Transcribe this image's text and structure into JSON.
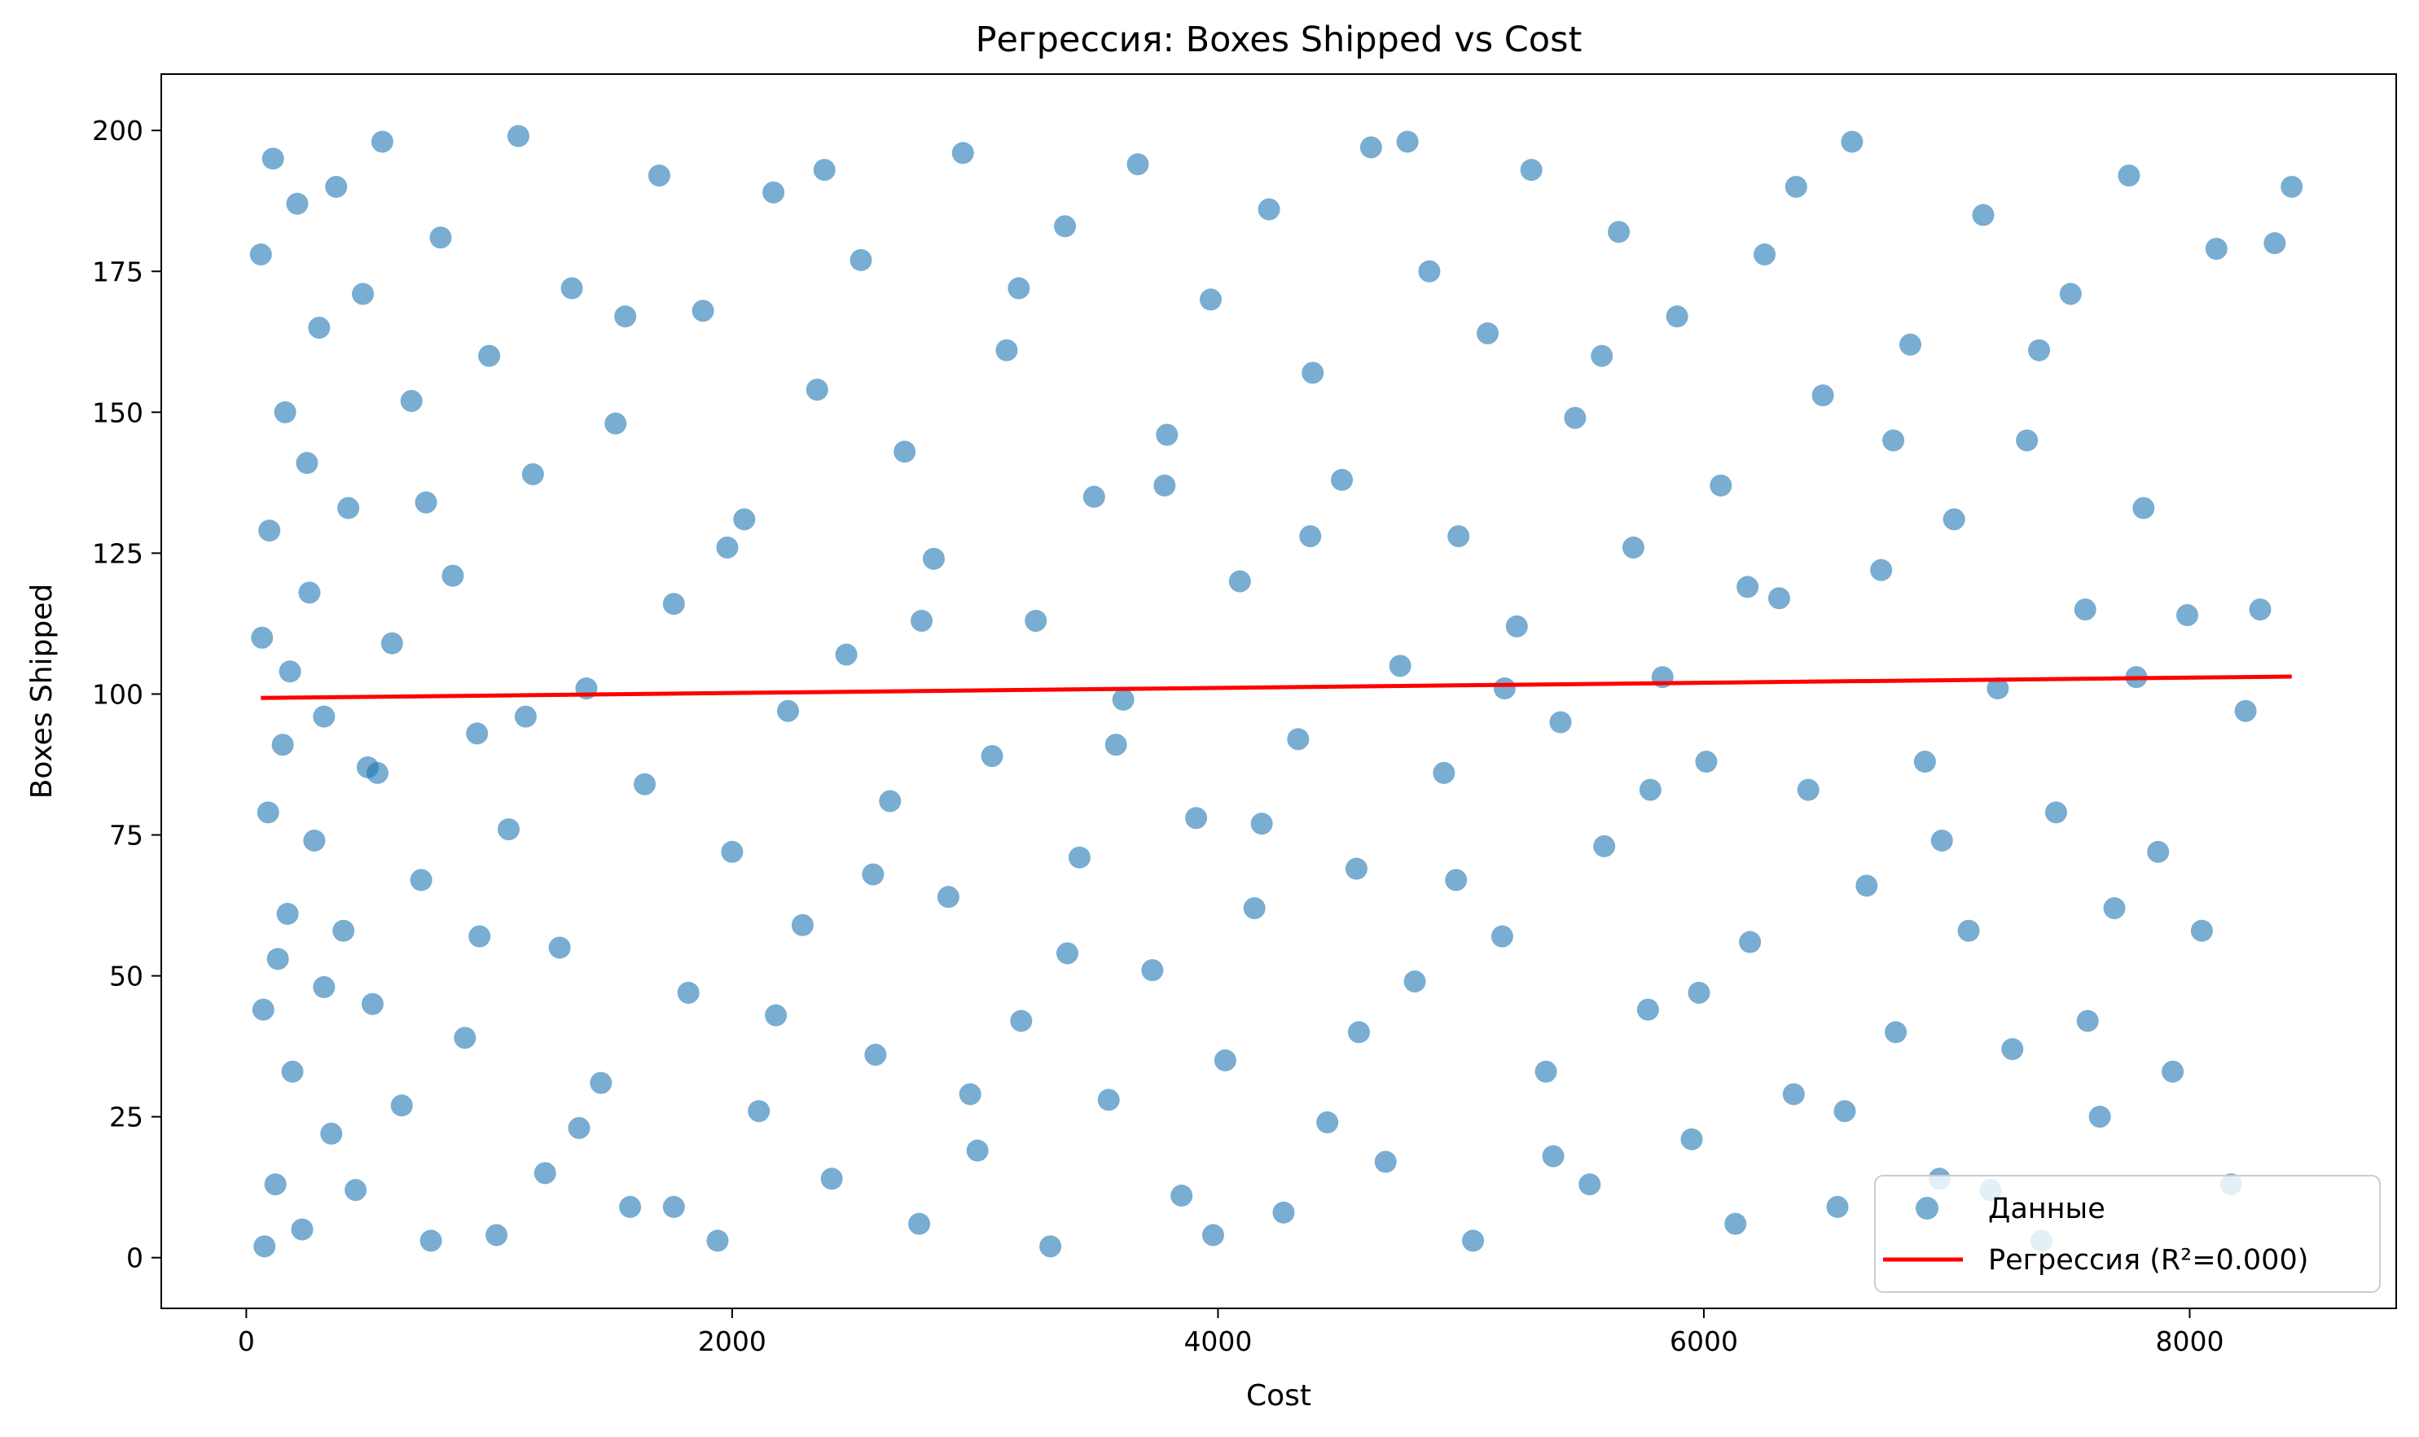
{
  "chart_data": {
    "type": "scatter",
    "title": "Регрессия: Boxes Shipped vs Cost",
    "xlabel": "Cost",
    "ylabel": "Boxes Shipped",
    "xlim": [
      -350,
      8850
    ],
    "ylim": [
      -9,
      210
    ],
    "x_ticks": [
      0,
      2000,
      4000,
      6000,
      8000
    ],
    "y_ticks": [
      0,
      25,
      50,
      75,
      100,
      125,
      150,
      175,
      200
    ],
    "grid": false,
    "legend_position": "bottom-right",
    "series": [
      {
        "name": "Данные",
        "kind": "scatter",
        "color": "#1f77b4",
        "alpha": 0.6,
        "points": [
          [
            60,
            178
          ],
          [
            65,
            110
          ],
          [
            70,
            44
          ],
          [
            75,
            2
          ],
          [
            90,
            79
          ],
          [
            95,
            129
          ],
          [
            110,
            195
          ],
          [
            120,
            13
          ],
          [
            130,
            53
          ],
          [
            150,
            91
          ],
          [
            160,
            150
          ],
          [
            170,
            61
          ],
          [
            180,
            104
          ],
          [
            190,
            33
          ],
          [
            210,
            187
          ],
          [
            230,
            5
          ],
          [
            250,
            141
          ],
          [
            260,
            118
          ],
          [
            280,
            74
          ],
          [
            300,
            165
          ],
          [
            320,
            96
          ],
          [
            350,
            22
          ],
          [
            370,
            190
          ],
          [
            400,
            58
          ],
          [
            420,
            133
          ],
          [
            450,
            12
          ],
          [
            480,
            171
          ],
          [
            500,
            87
          ],
          [
            520,
            45
          ],
          [
            560,
            198
          ],
          [
            600,
            109
          ],
          [
            640,
            27
          ],
          [
            680,
            152
          ],
          [
            720,
            67
          ],
          [
            760,
            3
          ],
          [
            800,
            181
          ],
          [
            850,
            121
          ],
          [
            900,
            39
          ],
          [
            950,
            93
          ],
          [
            1000,
            160
          ],
          [
            1030,
            4
          ],
          [
            1080,
            76
          ],
          [
            1120,
            199
          ],
          [
            1180,
            139
          ],
          [
            1230,
            15
          ],
          [
            1290,
            55
          ],
          [
            1340,
            172
          ],
          [
            1400,
            101
          ],
          [
            1460,
            31
          ],
          [
            1520,
            148
          ],
          [
            1580,
            9
          ],
          [
            1640,
            84
          ],
          [
            1700,
            192
          ],
          [
            1760,
            116
          ],
          [
            1820,
            47
          ],
          [
            1880,
            168
          ],
          [
            1940,
            3
          ],
          [
            2000,
            72
          ],
          [
            2050,
            131
          ],
          [
            2110,
            26
          ],
          [
            2170,
            189
          ],
          [
            2230,
            97
          ],
          [
            2290,
            59
          ],
          [
            2350,
            154
          ],
          [
            2410,
            14
          ],
          [
            2470,
            107
          ],
          [
            2530,
            177
          ],
          [
            2590,
            36
          ],
          [
            2650,
            81
          ],
          [
            2710,
            143
          ],
          [
            2770,
            6
          ],
          [
            2830,
            124
          ],
          [
            2890,
            64
          ],
          [
            2950,
            196
          ],
          [
            3010,
            19
          ],
          [
            3070,
            89
          ],
          [
            3130,
            161
          ],
          [
            3190,
            42
          ],
          [
            3250,
            113
          ],
          [
            3310,
            2
          ],
          [
            3370,
            183
          ],
          [
            3430,
            71
          ],
          [
            3490,
            135
          ],
          [
            3550,
            28
          ],
          [
            3610,
            99
          ],
          [
            3670,
            194
          ],
          [
            3730,
            51
          ],
          [
            3790,
            146
          ],
          [
            3850,
            11
          ],
          [
            3910,
            78
          ],
          [
            3970,
            170
          ],
          [
            4030,
            35
          ],
          [
            4090,
            120
          ],
          [
            4150,
            62
          ],
          [
            4210,
            186
          ],
          [
            4270,
            8
          ],
          [
            4330,
            92
          ],
          [
            4390,
            157
          ],
          [
            4450,
            24
          ],
          [
            4510,
            138
          ],
          [
            4570,
            69
          ],
          [
            4630,
            197
          ],
          [
            4690,
            17
          ],
          [
            4750,
            105
          ],
          [
            4810,
            49
          ],
          [
            4870,
            175
          ],
          [
            4930,
            86
          ],
          [
            4990,
            128
          ],
          [
            5050,
            3
          ],
          [
            5110,
            164
          ],
          [
            5170,
            57
          ],
          [
            5230,
            112
          ],
          [
            5290,
            193
          ],
          [
            5350,
            33
          ],
          [
            5410,
            95
          ],
          [
            5470,
            149
          ],
          [
            5530,
            13
          ],
          [
            5590,
            73
          ],
          [
            5650,
            182
          ],
          [
            5710,
            126
          ],
          [
            5770,
            44
          ],
          [
            5830,
            103
          ],
          [
            5890,
            167
          ],
          [
            5950,
            21
          ],
          [
            6010,
            88
          ],
          [
            6070,
            137
          ],
          [
            6130,
            6
          ],
          [
            6190,
            56
          ],
          [
            6250,
            178
          ],
          [
            6310,
            117
          ],
          [
            6370,
            29
          ],
          [
            6430,
            83
          ],
          [
            6490,
            153
          ],
          [
            6550,
            9
          ],
          [
            6610,
            198
          ],
          [
            6670,
            66
          ],
          [
            6730,
            122
          ],
          [
            6790,
            40
          ],
          [
            6850,
            162
          ],
          [
            6910,
            88
          ],
          [
            6970,
            14
          ],
          [
            7030,
            131
          ],
          [
            7090,
            58
          ],
          [
            7150,
            185
          ],
          [
            7210,
            101
          ],
          [
            7270,
            37
          ],
          [
            7330,
            145
          ],
          [
            7390,
            3
          ],
          [
            7450,
            79
          ],
          [
            7510,
            171
          ],
          [
            7570,
            115
          ],
          [
            7630,
            25
          ],
          [
            7690,
            62
          ],
          [
            7750,
            192
          ],
          [
            7810,
            133
          ],
          [
            7870,
            72
          ],
          [
            7930,
            33
          ],
          [
            7990,
            114
          ],
          [
            8050,
            58
          ],
          [
            8110,
            179
          ],
          [
            8170,
            13
          ],
          [
            8230,
            97
          ],
          [
            8290,
            115
          ],
          [
            8350,
            180
          ],
          [
            8420,
            190
          ],
          [
            320,
            48
          ],
          [
            540,
            86
          ],
          [
            740,
            134
          ],
          [
            960,
            57
          ],
          [
            1150,
            96
          ],
          [
            1370,
            23
          ],
          [
            1560,
            167
          ],
          [
            1760,
            9
          ],
          [
            1980,
            126
          ],
          [
            2180,
            43
          ],
          [
            2380,
            193
          ],
          [
            2580,
            68
          ],
          [
            2780,
            113
          ],
          [
            2980,
            29
          ],
          [
            3180,
            172
          ],
          [
            3380,
            54
          ],
          [
            3580,
            91
          ],
          [
            3780,
            137
          ],
          [
            3980,
            4
          ],
          [
            4180,
            77
          ],
          [
            4380,
            128
          ],
          [
            4580,
            40
          ],
          [
            4780,
            198
          ],
          [
            4980,
            67
          ],
          [
            5180,
            101
          ],
          [
            5380,
            18
          ],
          [
            5580,
            160
          ],
          [
            5780,
            83
          ],
          [
            5980,
            47
          ],
          [
            6180,
            119
          ],
          [
            6380,
            190
          ],
          [
            6580,
            26
          ],
          [
            6780,
            145
          ],
          [
            6980,
            74
          ],
          [
            7180,
            12
          ],
          [
            7380,
            161
          ],
          [
            7580,
            42
          ],
          [
            7780,
            103
          ]
        ]
      },
      {
        "name": "Регрессия (R²=0.000)",
        "kind": "line",
        "color": "#ff0000",
        "x": [
          60,
          8420
        ],
        "y": [
          99.3,
          103.1
        ]
      }
    ]
  }
}
